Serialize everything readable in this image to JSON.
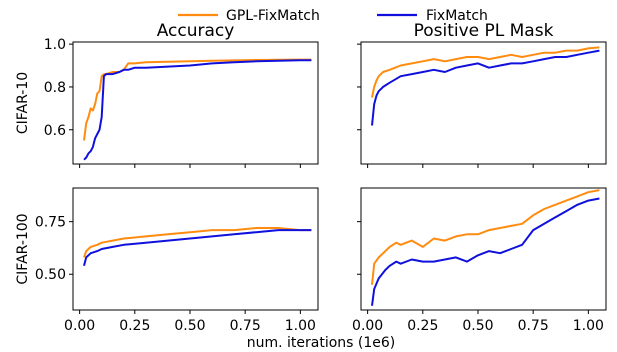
{
  "legend": {
    "placement": "top-center",
    "entries": [
      {
        "name": "GPL-FixMatch",
        "color": "#ff8c10"
      },
      {
        "name": "FixMatch",
        "color": "#1010dd"
      }
    ]
  },
  "chart_data": [
    {
      "type": "line",
      "title": "Accuracy",
      "ylabel": "CIFAR-10",
      "xlabel": "",
      "xlim": [
        -0.03,
        1.08
      ],
      "ylim": [
        0.44,
        1.01
      ],
      "yticks": [
        0.6,
        0.8,
        1.0
      ],
      "ytick_labels": [
        "0.6",
        "0.8",
        "1.0"
      ],
      "xticks": [
        0,
        0.25,
        0.5,
        0.75,
        1.0
      ],
      "xtick_labels": [],
      "series": [
        {
          "name": "GPL-FixMatch",
          "color": "#ff8c10",
          "x": [
            0.02,
            0.03,
            0.04,
            0.05,
            0.06,
            0.07,
            0.08,
            0.09,
            0.1,
            0.11,
            0.12,
            0.15,
            0.18,
            0.2,
            0.22,
            0.25,
            0.3,
            0.4,
            0.5,
            0.6,
            0.7,
            0.8,
            0.9,
            1.0,
            1.05
          ],
          "y": [
            0.55,
            0.63,
            0.66,
            0.7,
            0.69,
            0.72,
            0.77,
            0.78,
            0.85,
            0.86,
            0.86,
            0.87,
            0.87,
            0.88,
            0.91,
            0.91,
            0.915,
            0.918,
            0.92,
            0.922,
            0.924,
            0.926,
            0.927,
            0.928,
            0.928
          ]
        },
        {
          "name": "FixMatch",
          "color": "#1010dd",
          "x": [
            0.02,
            0.03,
            0.04,
            0.05,
            0.06,
            0.07,
            0.08,
            0.09,
            0.1,
            0.11,
            0.12,
            0.15,
            0.18,
            0.2,
            0.22,
            0.25,
            0.3,
            0.4,
            0.5,
            0.6,
            0.7,
            0.8,
            0.9,
            1.0,
            1.05
          ],
          "y": [
            0.46,
            0.47,
            0.49,
            0.5,
            0.52,
            0.56,
            0.58,
            0.6,
            0.66,
            0.85,
            0.86,
            0.86,
            0.87,
            0.88,
            0.88,
            0.89,
            0.89,
            0.895,
            0.9,
            0.91,
            0.915,
            0.92,
            0.922,
            0.925,
            0.925
          ]
        }
      ]
    },
    {
      "type": "line",
      "title": "Positive PL Mask",
      "ylabel": "",
      "xlabel": "",
      "xlim": [
        -0.03,
        1.08
      ],
      "ylim": [
        0.44,
        1.01
      ],
      "yticks": [
        0.6,
        0.8,
        1.0
      ],
      "ytick_labels": [],
      "xticks": [
        0,
        0.25,
        0.5,
        0.75,
        1.0
      ],
      "xtick_labels": [],
      "series": [
        {
          "name": "GPL-FixMatch",
          "color": "#ff8c10",
          "x": [
            0.02,
            0.03,
            0.04,
            0.05,
            0.07,
            0.1,
            0.15,
            0.2,
            0.25,
            0.3,
            0.35,
            0.4,
            0.45,
            0.5,
            0.55,
            0.6,
            0.65,
            0.7,
            0.75,
            0.8,
            0.85,
            0.9,
            0.95,
            1.0,
            1.05
          ],
          "y": [
            0.75,
            0.8,
            0.83,
            0.85,
            0.87,
            0.88,
            0.9,
            0.91,
            0.92,
            0.93,
            0.92,
            0.93,
            0.94,
            0.94,
            0.93,
            0.94,
            0.95,
            0.94,
            0.95,
            0.96,
            0.96,
            0.97,
            0.97,
            0.98,
            0.985
          ]
        },
        {
          "name": "FixMatch",
          "color": "#1010dd",
          "x": [
            0.02,
            0.03,
            0.04,
            0.05,
            0.07,
            0.1,
            0.15,
            0.2,
            0.25,
            0.3,
            0.35,
            0.4,
            0.45,
            0.5,
            0.55,
            0.6,
            0.65,
            0.7,
            0.75,
            0.8,
            0.85,
            0.9,
            0.95,
            1.0,
            1.05
          ],
          "y": [
            0.62,
            0.72,
            0.76,
            0.78,
            0.8,
            0.82,
            0.85,
            0.86,
            0.87,
            0.88,
            0.87,
            0.89,
            0.9,
            0.91,
            0.89,
            0.9,
            0.91,
            0.91,
            0.92,
            0.93,
            0.94,
            0.94,
            0.95,
            0.96,
            0.97
          ]
        }
      ]
    },
    {
      "type": "line",
      "title": "",
      "ylabel": "CIFAR-100",
      "xlabel": "",
      "xlim": [
        -0.03,
        1.08
      ],
      "ylim": [
        0.33,
        0.91
      ],
      "yticks": [
        0.5,
        0.75
      ],
      "ytick_labels": [
        "0.50",
        "0.75"
      ],
      "xticks": [
        0,
        0.25,
        0.5,
        0.75,
        1.0
      ],
      "xtick_labels": [
        "0.00",
        "0.25",
        "0.50",
        "0.75",
        "1.00"
      ],
      "series": [
        {
          "name": "GPL-FixMatch",
          "color": "#ff8c10",
          "x": [
            0.02,
            0.03,
            0.05,
            0.08,
            0.1,
            0.15,
            0.2,
            0.3,
            0.4,
            0.5,
            0.6,
            0.7,
            0.8,
            0.9,
            1.0,
            1.05
          ],
          "y": [
            0.58,
            0.61,
            0.63,
            0.64,
            0.65,
            0.66,
            0.67,
            0.68,
            0.69,
            0.7,
            0.71,
            0.71,
            0.72,
            0.72,
            0.71,
            0.71
          ]
        },
        {
          "name": "FixMatch",
          "color": "#1010dd",
          "x": [
            0.02,
            0.03,
            0.05,
            0.08,
            0.1,
            0.15,
            0.2,
            0.3,
            0.4,
            0.5,
            0.6,
            0.7,
            0.8,
            0.9,
            1.0,
            1.05
          ],
          "y": [
            0.54,
            0.58,
            0.6,
            0.61,
            0.62,
            0.63,
            0.64,
            0.65,
            0.66,
            0.67,
            0.68,
            0.69,
            0.7,
            0.71,
            0.71,
            0.71
          ]
        }
      ]
    },
    {
      "type": "line",
      "title": "",
      "ylabel": "",
      "xlabel": "num. iterations (1e6)",
      "xlim": [
        -0.03,
        1.08
      ],
      "ylim": [
        0.33,
        0.91
      ],
      "yticks": [
        0.5,
        0.75
      ],
      "ytick_labels": [],
      "xticks": [
        0,
        0.25,
        0.5,
        0.75,
        1.0
      ],
      "xtick_labels": [
        "0.00",
        "0.25",
        "0.50",
        "0.75",
        "1.00"
      ],
      "series": [
        {
          "name": "GPL-FixMatch",
          "color": "#ff8c10",
          "x": [
            0.02,
            0.03,
            0.05,
            0.08,
            0.1,
            0.13,
            0.15,
            0.2,
            0.25,
            0.3,
            0.35,
            0.4,
            0.45,
            0.5,
            0.55,
            0.6,
            0.65,
            0.7,
            0.75,
            0.8,
            0.85,
            0.9,
            0.95,
            1.0,
            1.05
          ],
          "y": [
            0.45,
            0.55,
            0.58,
            0.61,
            0.63,
            0.65,
            0.64,
            0.66,
            0.63,
            0.67,
            0.66,
            0.68,
            0.69,
            0.69,
            0.71,
            0.72,
            0.73,
            0.74,
            0.78,
            0.81,
            0.83,
            0.85,
            0.87,
            0.89,
            0.9
          ]
        },
        {
          "name": "FixMatch",
          "color": "#1010dd",
          "x": [
            0.02,
            0.03,
            0.05,
            0.08,
            0.1,
            0.13,
            0.15,
            0.2,
            0.25,
            0.3,
            0.35,
            0.4,
            0.45,
            0.5,
            0.55,
            0.6,
            0.65,
            0.7,
            0.75,
            0.8,
            0.85,
            0.9,
            0.95,
            1.0,
            1.05
          ],
          "y": [
            0.35,
            0.43,
            0.48,
            0.52,
            0.54,
            0.56,
            0.55,
            0.57,
            0.56,
            0.56,
            0.57,
            0.58,
            0.56,
            0.59,
            0.61,
            0.6,
            0.62,
            0.64,
            0.71,
            0.74,
            0.77,
            0.8,
            0.83,
            0.85,
            0.86
          ]
        }
      ]
    }
  ]
}
